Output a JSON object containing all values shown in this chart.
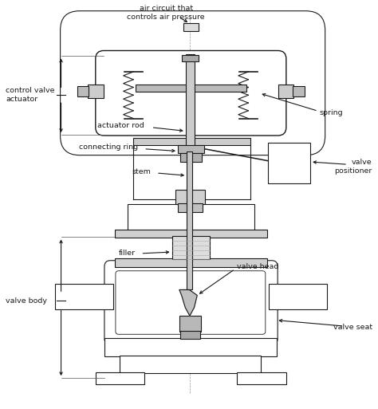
{
  "bg_color": "#ffffff",
  "line_color": "#1a1a1a",
  "figsize": [
    4.74,
    5.13
  ],
  "dpi": 100,
  "labels": {
    "air_circuit": "air circuit that\ncontrols air pressure",
    "control_valve_actuator": "control valve\nactuator",
    "spring": "spring",
    "actuator_rod": "actuator rod",
    "connecting_ring": "connecting ring",
    "stem": "stem",
    "valve_positioner": "valve\npositioner",
    "filler": "filler",
    "valve_head": "valve head",
    "valve_body": "valve body",
    "valve_seat": "valve seat"
  }
}
